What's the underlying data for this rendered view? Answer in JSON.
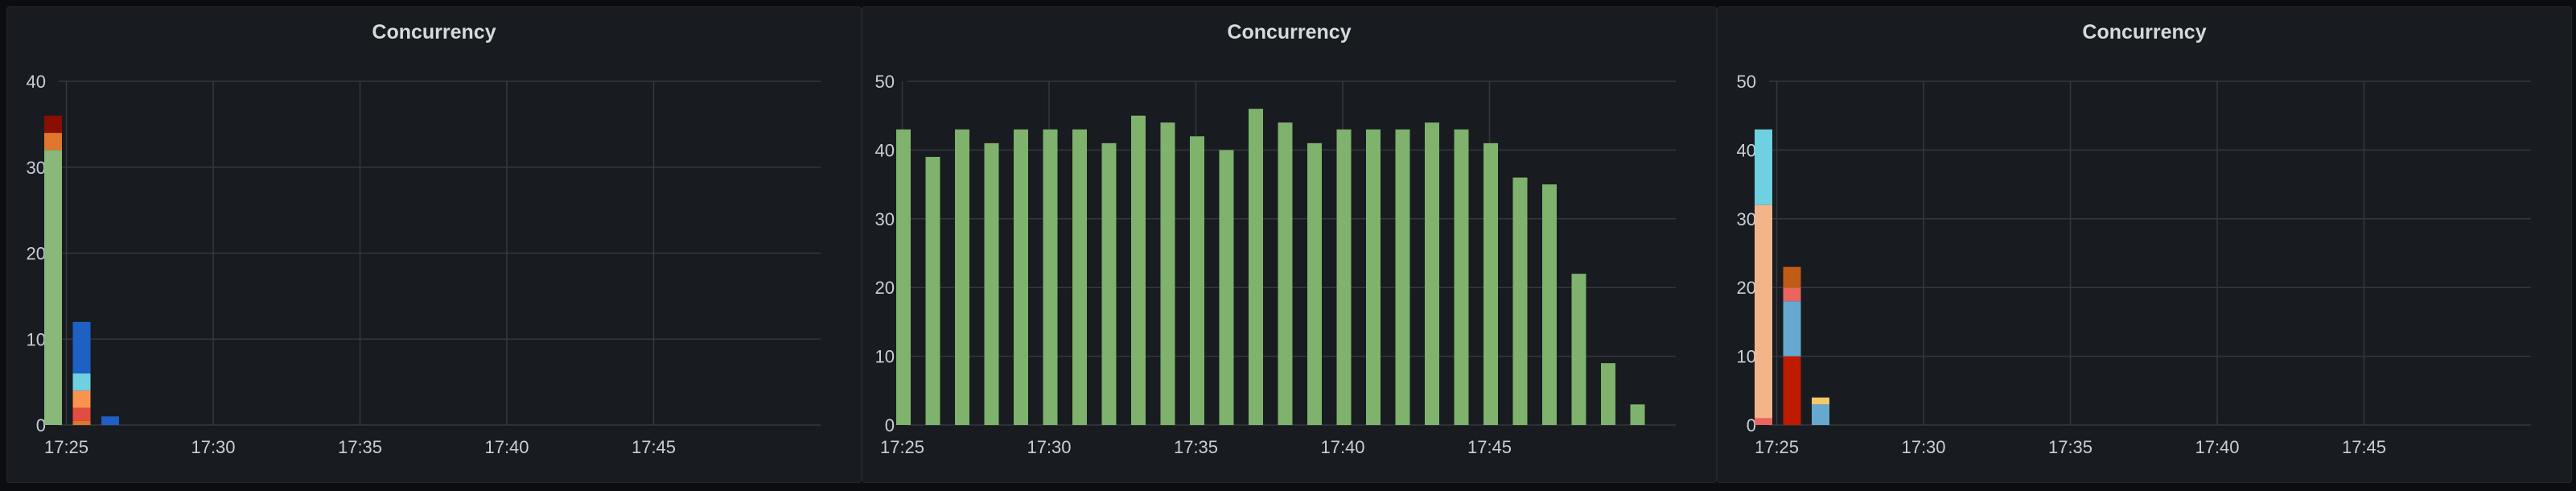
{
  "colors": {
    "grid": "#34373d",
    "green": "#7eb26d",
    "blue": "#1f60c4",
    "light_green": "#8ab77a",
    "dark_red": "#890f02",
    "orange": "#e0752d",
    "red_orange": "#e24d42",
    "light_blue": "#6ed0e0",
    "peach": "#f4b48a",
    "brown_orange": "#c15c17",
    "pink": "#ea6460",
    "steel_blue": "#65a9d0",
    "yellow": "#f2c96d",
    "bright_red": "#bf1b00"
  },
  "chart_data": [
    {
      "type": "bar",
      "stacked": true,
      "title": "Concurrency",
      "xlabel": "",
      "ylabel": "",
      "ylim": [
        0,
        40
      ],
      "y_ticks": [
        "0",
        "10",
        "20",
        "30",
        "40"
      ],
      "x_ticks": [
        "17:25",
        "17:30",
        "17:35",
        "17:40",
        "17:45"
      ],
      "x_range_minutes": [
        0,
        25
      ],
      "grid": true,
      "bars": [
        {
          "x": 0,
          "segments": [
            {
              "value": 32,
              "color": "#8ab77a"
            },
            {
              "value": 2,
              "color": "#e0752d"
            },
            {
              "value": 2,
              "color": "#890f02"
            }
          ]
        },
        {
          "x": 1,
          "segments": [
            {
              "value": 0.5,
              "color": "#e0752d"
            },
            {
              "value": 1.5,
              "color": "#e24d42"
            },
            {
              "value": 2,
              "color": "#f9934e"
            },
            {
              "value": 2,
              "color": "#6ed0e0"
            },
            {
              "value": 6,
              "color": "#1f60c4"
            }
          ]
        },
        {
          "x": 2,
          "segments": [
            {
              "value": 1,
              "color": "#1f60c4"
            }
          ]
        }
      ]
    },
    {
      "type": "bar",
      "title": "Concurrency",
      "xlabel": "",
      "ylabel": "",
      "ylim": [
        0,
        50
      ],
      "y_ticks": [
        "0",
        "10",
        "20",
        "30",
        "40",
        "50"
      ],
      "x_ticks": [
        "17:25",
        "17:30",
        "17:35",
        "17:40",
        "17:45"
      ],
      "x_range_minutes": [
        0,
        25
      ],
      "grid": true,
      "color": "#7eb26d",
      "values": [
        43,
        39,
        43,
        41,
        43,
        43,
        43,
        41,
        45,
        44,
        42,
        40,
        46,
        44,
        41,
        43,
        43,
        43,
        44,
        43,
        41,
        36,
        35,
        22,
        9,
        3
      ]
    },
    {
      "type": "bar",
      "stacked": true,
      "title": "Concurrency",
      "xlabel": "",
      "ylabel": "",
      "ylim": [
        0,
        50
      ],
      "y_ticks": [
        "0",
        "10",
        "20",
        "30",
        "40",
        "50"
      ],
      "x_ticks": [
        "17:25",
        "17:30",
        "17:35",
        "17:40",
        "17:45"
      ],
      "x_range_minutes": [
        0,
        25
      ],
      "grid": true,
      "bars": [
        {
          "x": 0,
          "segments": [
            {
              "value": 1,
              "color": "#ea6460"
            },
            {
              "value": 31,
              "color": "#f4b48a"
            },
            {
              "value": 11,
              "color": "#6ed0e0"
            }
          ]
        },
        {
          "x": 1,
          "segments": [
            {
              "value": 10,
              "color": "#bf1b00"
            },
            {
              "value": 8,
              "color": "#65a9d0"
            },
            {
              "value": 2,
              "color": "#ea6460"
            },
            {
              "value": 3,
              "color": "#c15c17"
            }
          ]
        },
        {
          "x": 2,
          "segments": [
            {
              "value": 3,
              "color": "#65a9d0"
            },
            {
              "value": 1,
              "color": "#f2c96d"
            }
          ]
        }
      ]
    }
  ]
}
